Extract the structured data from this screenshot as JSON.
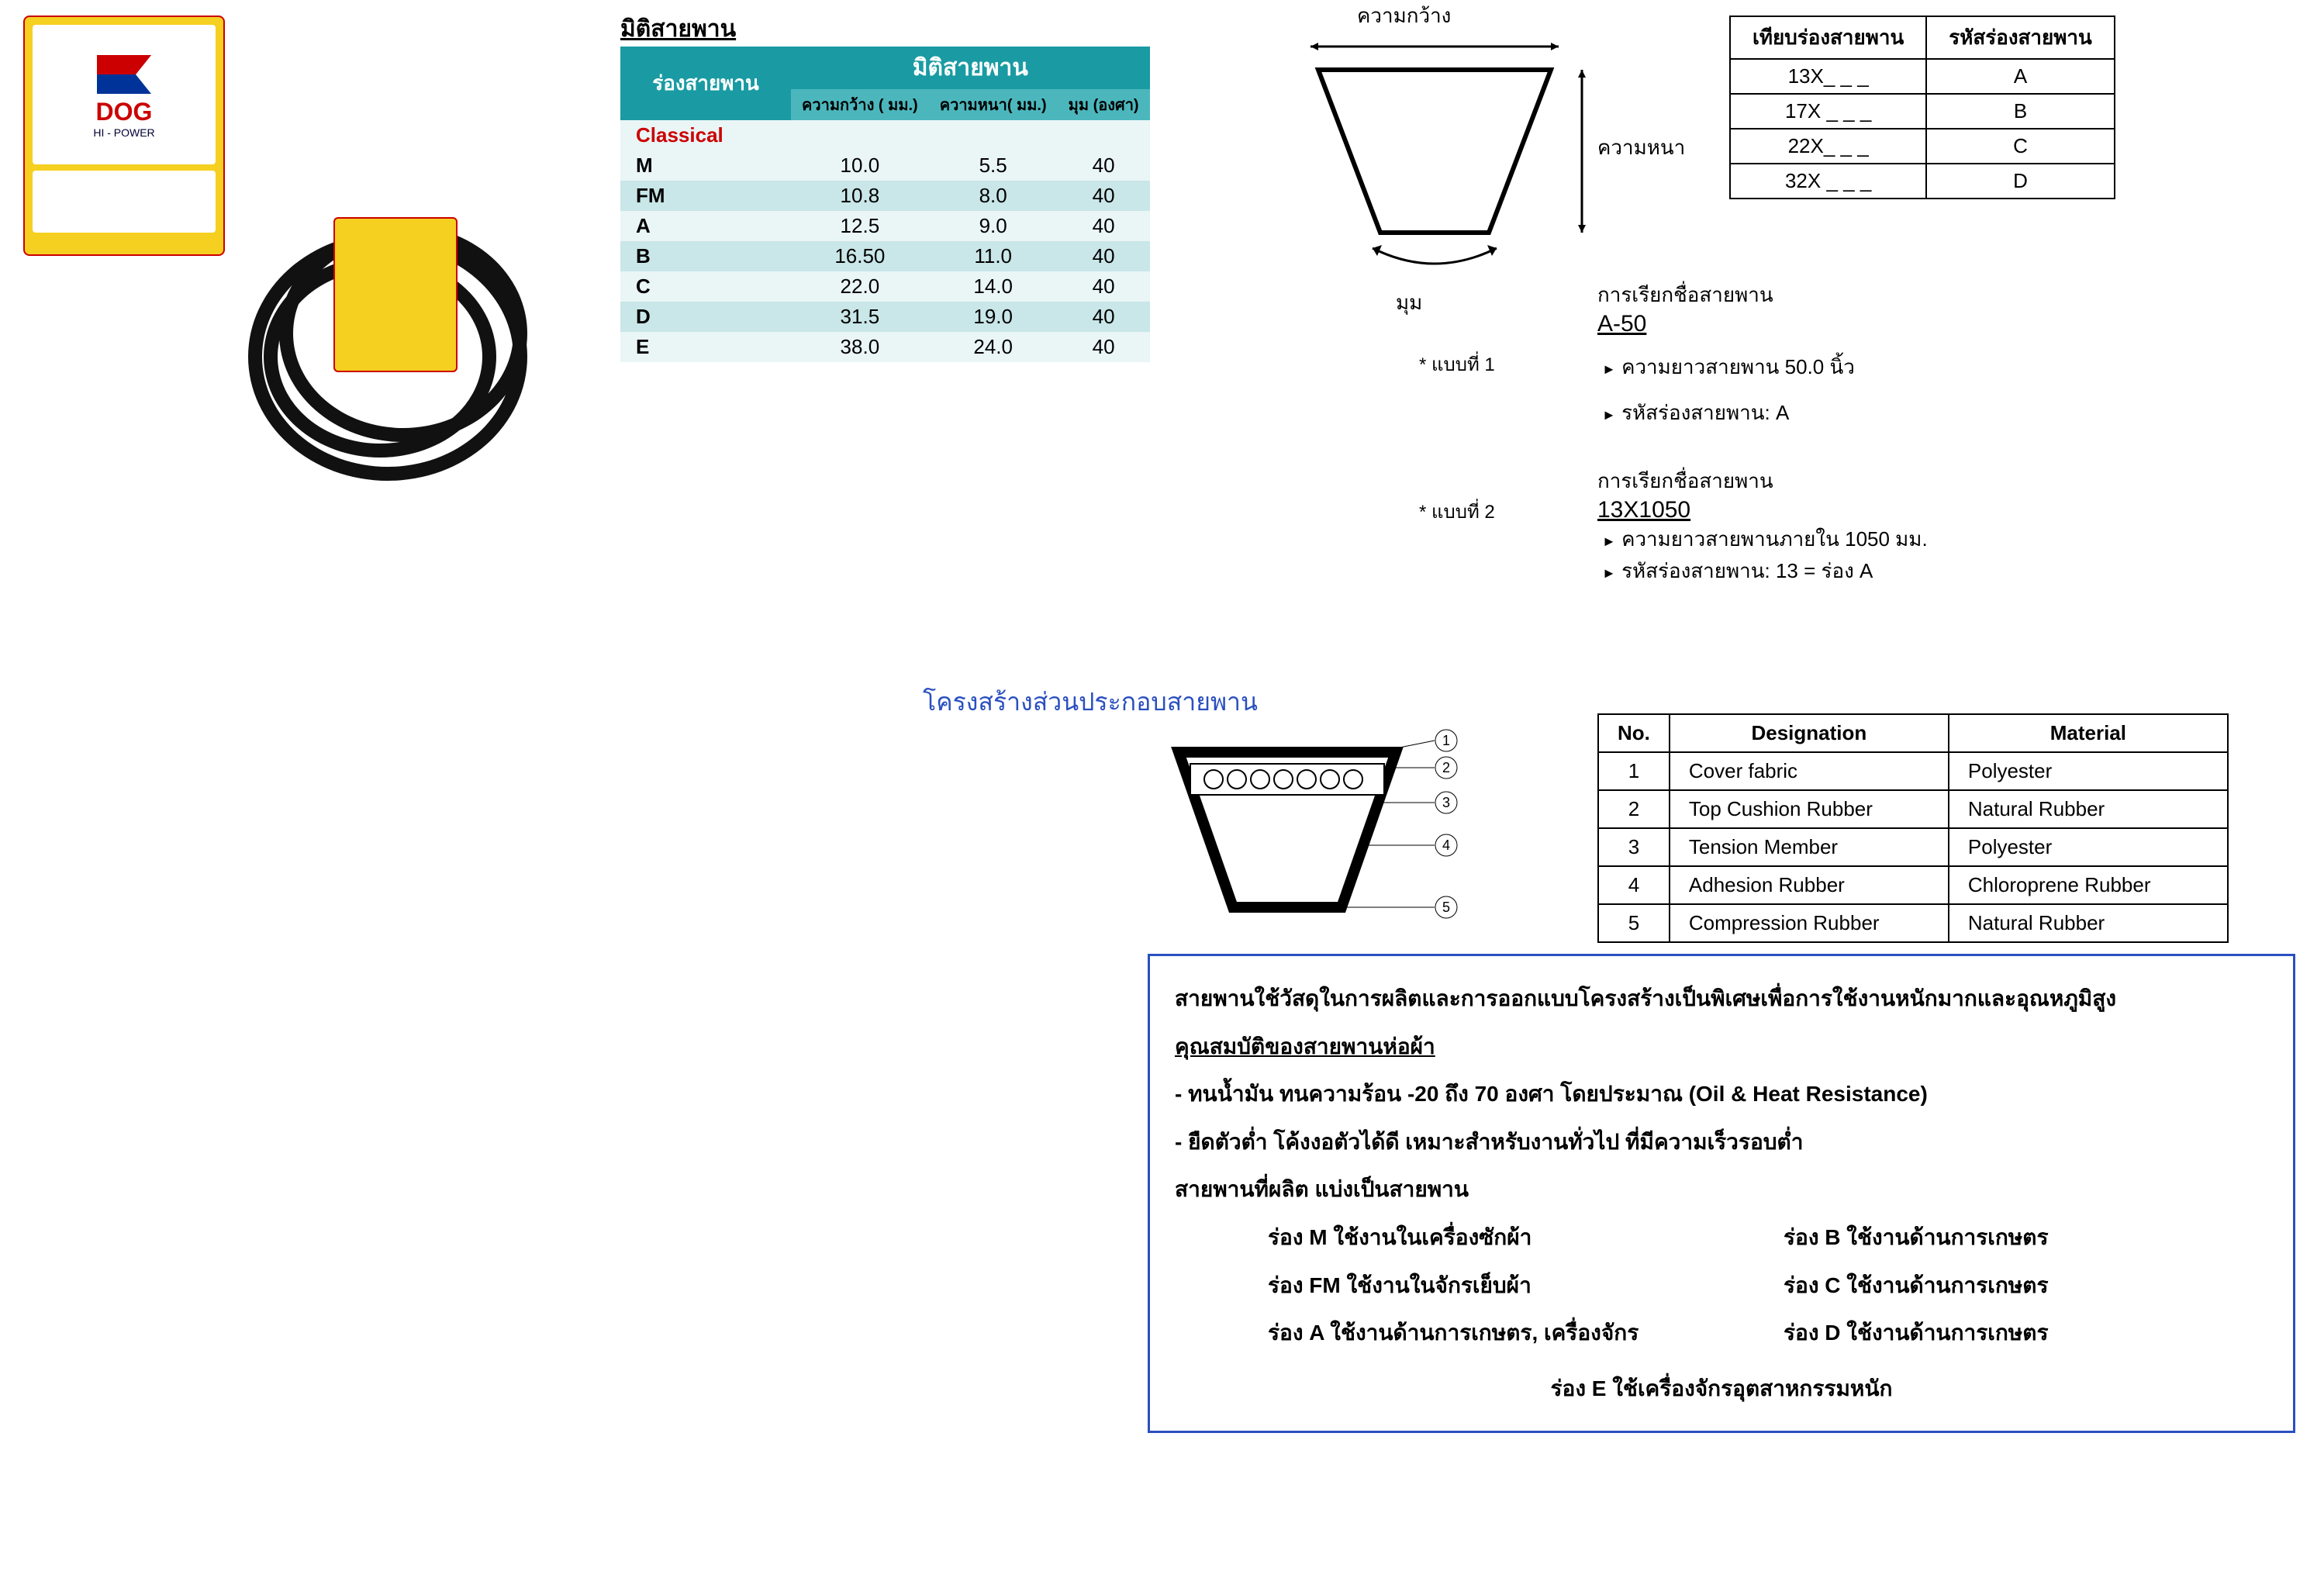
{
  "logo": {
    "brand": "DOG",
    "sub": "HI - POWER"
  },
  "title_dims": "มิติสายพาน",
  "dims": {
    "header_main": "มิติสายพาน",
    "header_groove": "ร่องสายพาน",
    "col_width": "ความกว้าง ( มม.)",
    "col_thick": "ความหนา( มม.)",
    "col_angle": "มุม (องศา)",
    "classical": "Classical",
    "rows": [
      {
        "g": "M",
        "w": "10.0",
        "t": "5.5",
        "a": "40",
        "cls": "light"
      },
      {
        "g": "FM",
        "w": "10.8",
        "t": "8.0",
        "a": "40",
        "cls": "dark"
      },
      {
        "g": "A",
        "w": "12.5",
        "t": "9.0",
        "a": "40",
        "cls": "light"
      },
      {
        "g": "B",
        "w": "16.50",
        "t": "11.0",
        "a": "40",
        "cls": "dark"
      },
      {
        "g": "C",
        "w": "22.0",
        "t": "14.0",
        "a": "40",
        "cls": "light"
      },
      {
        "g": "D",
        "w": "31.5",
        "t": "19.0",
        "a": "40",
        "cls": "dark"
      },
      {
        "g": "E",
        "w": "38.0",
        "t": "24.0",
        "a": "40",
        "cls": "light"
      }
    ]
  },
  "cross_labels": {
    "width": "ความกว้าง",
    "thick": "ความหนา",
    "angle": "มุม"
  },
  "ex1": "* แบบที่ 1",
  "ex2": "* แบบที่ 2",
  "code_table": {
    "h1": "เทียบร่องสายพาน",
    "h2": "รหัสร่องสายพาน",
    "rows": [
      {
        "a": "13X_ _ _",
        "b": "A"
      },
      {
        "a": "17X _ _ _",
        "b": "B"
      },
      {
        "a": "22X_ _ _",
        "b": "C"
      },
      {
        "a": "32X _ _ _",
        "b": "D"
      }
    ]
  },
  "naming1": {
    "title": "การเรียกชื่อสายพาน",
    "code": "A-50",
    "line1": "ความยาวสายพาน  50.0 นิ้ว",
    "line2": "รหัสร่องสายพาน: A"
  },
  "naming2": {
    "title": "การเรียกชื่อสายพาน",
    "code": "13X1050",
    "line1": "ความยาวสายพานภายใน 1050 มม.",
    "line2": "รหัสร่องสายพาน: 13 = ร่อง A"
  },
  "struct_title": "โครงสร้างส่วนประกอบสายพาน",
  "materials": {
    "h_no": "No.",
    "h_des": "Designation",
    "h_mat": "Material",
    "rows": [
      {
        "n": "1",
        "d": "Cover  fabric",
        "m": "Polyester"
      },
      {
        "n": "2",
        "d": "Top Cushion Rubber",
        "m": "Natural   Rubber"
      },
      {
        "n": "3",
        "d": "Tension Member",
        "m": "Polyester"
      },
      {
        "n": "4",
        "d": "Adhesion  Rubber",
        "m": "Chloroprene   Rubber"
      },
      {
        "n": "5",
        "d": "Compression Rubber",
        "m": "Natural  Rubber"
      }
    ]
  },
  "desc": {
    "intro": "สายพานใช้วัสดุในการผลิตและการออกแบบโครงสร้างเป็นพิเศษเพื่อการใช้งานหนักมากและอุณหภูมิสูง",
    "props_title": "คุณสมบัติของสายพานห่อผ้า",
    "b1": "-  ทนน้ำมัน ทนความร้อน -20 ถึง 70 องศา โดยประมาณ (Oil & Heat Resistance)",
    "b2": "-  ยืดตัวต่ำ โค้งงอตัวได้ดี เหมาะสำหรับงานทั่วไป ที่มีความเร็วรอบต่ำ",
    "uses_title": "สายพานที่ผลิต แบ่งเป็นสายพาน",
    "uses": [
      "ร่อง M ใช้งานในเครื่องซักผ้า",
      "ร่อง B ใช้งานด้านการเกษตร",
      "ร่อง FM ใช้งานในจักรเย็บผ้า",
      "ร่อง C ใช้งานด้านการเกษตร",
      "ร่อง A ใช้งานด้านการเกษตร, เครื่องจักร",
      "ร่อง D ใช้งานด้านการเกษตร"
    ],
    "last": "ร่อง E   ใช้เครื่องจักรอุตสาหกรรมหนัก"
  }
}
